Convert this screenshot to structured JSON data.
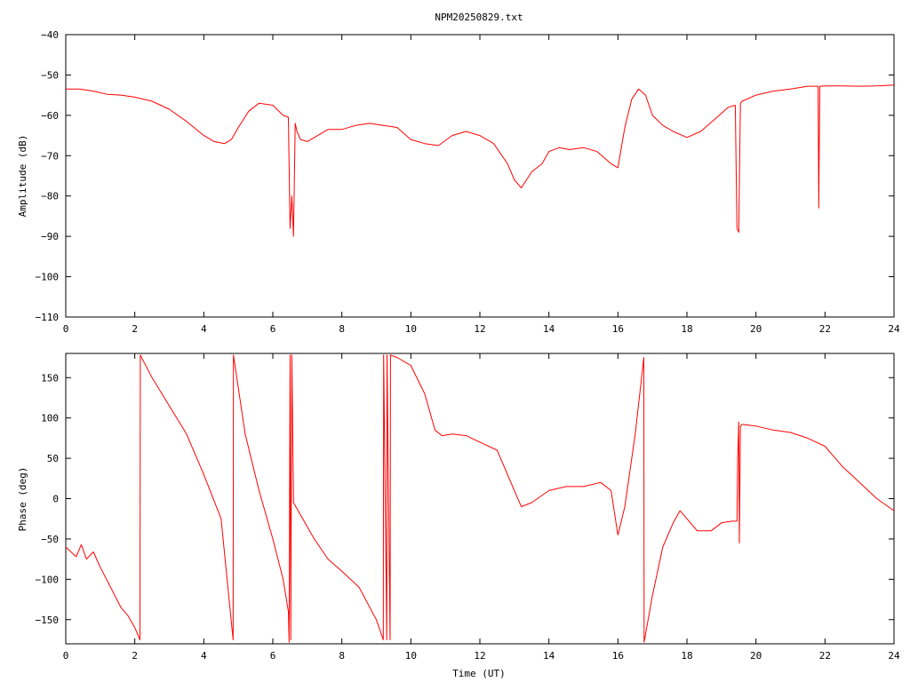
{
  "title": "NPM20250829.txt",
  "series_color": "#ff0000",
  "chart_data": [
    {
      "type": "line",
      "panel": "amplitude",
      "xlabel": "",
      "ylabel": "Amplitude (dB)",
      "xlim": [
        0,
        24
      ],
      "ylim": [
        -110,
        -40
      ],
      "xticks": [
        0,
        2,
        4,
        6,
        8,
        10,
        12,
        14,
        16,
        18,
        20,
        22,
        24
      ],
      "yticks": [
        -110,
        -100,
        -90,
        -80,
        -70,
        -60,
        -50,
        -40
      ],
      "grid": false,
      "series": [
        {
          "x": [
            0,
            0.4,
            0.8,
            1.2,
            1.6,
            2.0,
            2.5,
            3.0,
            3.5,
            4.0,
            4.3,
            4.6,
            4.8,
            5.0,
            5.3,
            5.6,
            6.0,
            6.3,
            6.45,
            6.5,
            6.55,
            6.6,
            6.65,
            6.7,
            6.8,
            7.0,
            7.3,
            7.6,
            8.0,
            8.4,
            8.8,
            9.2,
            9.6,
            10.0,
            10.4,
            10.8,
            11.2,
            11.6,
            12.0,
            12.4,
            12.8,
            13.0,
            13.2,
            13.5,
            13.8,
            14.0,
            14.3,
            14.6,
            15.0,
            15.4,
            15.8,
            16.0,
            16.2,
            16.4,
            16.6,
            16.8,
            17.0,
            17.3,
            17.6,
            18.0,
            18.4,
            18.8,
            19.2,
            19.4,
            19.45,
            19.5,
            19.55,
            19.6,
            20.0,
            20.5,
            21.0,
            21.5,
            21.8,
            21.82,
            21.85,
            22.0,
            22.5,
            23.0,
            23.5,
            24.0
          ],
          "y": [
            -53.5,
            -53.5,
            -54.0,
            -54.8,
            -55.0,
            -55.5,
            -56.5,
            -58.5,
            -61.5,
            -65.0,
            -66.5,
            -67.0,
            -66.0,
            -63.0,
            -59.0,
            -57.0,
            -57.5,
            -60.0,
            -60.5,
            -88.0,
            -80.0,
            -90.0,
            -62.0,
            -64.0,
            -66.0,
            -66.5,
            -65.0,
            -63.5,
            -63.5,
            -62.5,
            -62.0,
            -62.5,
            -63.0,
            -66.0,
            -67.0,
            -67.5,
            -65.0,
            -64.0,
            -65.0,
            -67.0,
            -72.0,
            -76.0,
            -78.0,
            -74.0,
            -72.0,
            -69.0,
            -68.0,
            -68.5,
            -68.0,
            -69.0,
            -72.0,
            -73.0,
            -63.0,
            -56.0,
            -53.5,
            -55.0,
            -60.0,
            -62.5,
            -64.0,
            -65.5,
            -64.0,
            -61.0,
            -58.0,
            -57.5,
            -88.0,
            -89.0,
            -57.0,
            -56.5,
            -55.0,
            -54.0,
            -53.5,
            -52.8,
            -52.8,
            -83.0,
            -52.8,
            -52.7,
            -52.7,
            -52.8,
            -52.7,
            -52.5
          ]
        }
      ]
    },
    {
      "type": "line",
      "panel": "phase",
      "xlabel": "Time (UT)",
      "ylabel": "Phase (deg)",
      "xlim": [
        0,
        24
      ],
      "ylim": [
        -180,
        180
      ],
      "xticks": [
        0,
        2,
        4,
        6,
        8,
        10,
        12,
        14,
        16,
        18,
        20,
        22,
        24
      ],
      "yticks": [
        -150,
        -100,
        -50,
        0,
        50,
        100,
        150
      ],
      "grid": false,
      "series": [
        {
          "x": [
            0,
            0.3,
            0.45,
            0.6,
            0.8,
            1.0,
            1.3,
            1.6,
            1.8,
            2.0,
            2.15,
            2.16,
            2.5,
            3.0,
            3.5,
            4.0,
            4.5,
            4.85,
            4.86,
            5.2,
            5.6,
            6.0,
            6.3,
            6.45,
            6.47,
            6.5,
            6.52,
            6.55,
            6.6,
            6.8,
            7.2,
            7.6,
            8.0,
            8.5,
            9.0,
            9.2,
            9.21,
            9.3,
            9.31,
            9.4,
            9.41,
            9.6,
            10.0,
            10.4,
            10.7,
            10.9,
            11.2,
            11.6,
            12.0,
            12.5,
            12.8,
            13.0,
            13.2,
            13.5,
            14.0,
            14.5,
            15.0,
            15.5,
            15.8,
            16.0,
            16.2,
            16.5,
            16.75,
            16.76,
            17.0,
            17.3,
            17.6,
            17.8,
            18.0,
            18.3,
            18.7,
            19.0,
            19.3,
            19.45,
            19.47,
            19.5,
            19.52,
            19.55,
            19.6,
            20.0,
            20.5,
            21.0,
            21.5,
            22.0,
            22.5,
            23.0,
            23.5,
            24.0
          ],
          "y": [
            -60,
            -72,
            -57,
            -75,
            -66,
            -85,
            -110,
            -135,
            -145,
            -160,
            -175,
            178,
            150,
            115,
            80,
            30,
            -25,
            -175,
            178,
            80,
            10,
            -50,
            -100,
            -140,
            -178,
            178,
            -175,
            178,
            -5,
            -20,
            -50,
            -75,
            -90,
            -110,
            -150,
            -175,
            178,
            -175,
            178,
            -175,
            178,
            175,
            165,
            130,
            85,
            78,
            80,
            78,
            70,
            60,
            30,
            10,
            -10,
            -5,
            10,
            15,
            15,
            20,
            10,
            -45,
            -10,
            80,
            175,
            -178,
            -120,
            -60,
            -30,
            -15,
            -25,
            -40,
            -40,
            -30,
            -28,
            -28,
            50,
            95,
            -55,
            90,
            92,
            90,
            85,
            82,
            75,
            65,
            40,
            20,
            0,
            -15
          ]
        }
      ]
    }
  ]
}
